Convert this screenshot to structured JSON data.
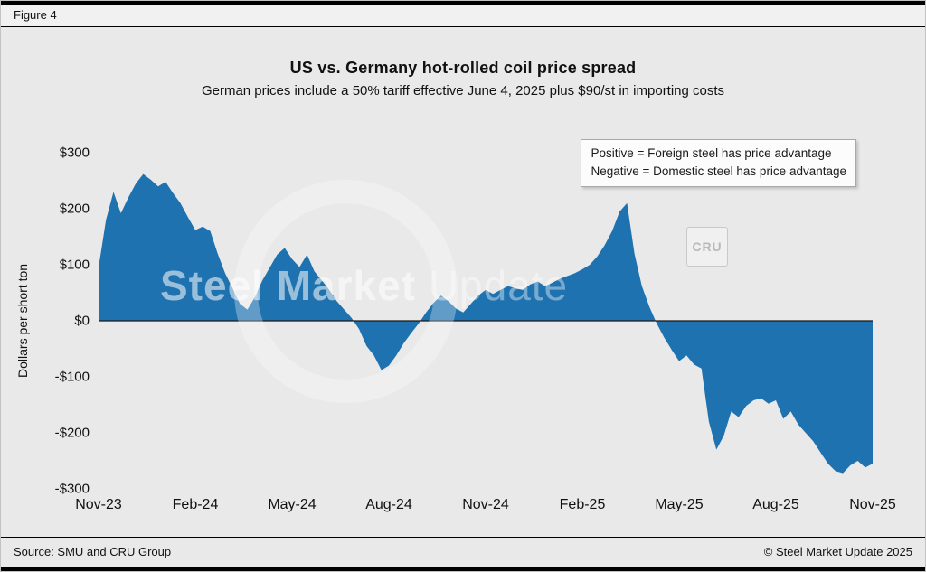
{
  "figure_label": "Figure 4",
  "chart_data": {
    "type": "area",
    "title": "US vs. Germany hot-rolled coil price spread",
    "subtitle": "German prices include a 50% tariff effective June 4, 2025 plus $90/st in importing costs",
    "ylabel": "Dollars per short ton",
    "ylim": [
      -300,
      300
    ],
    "yticks": [
      "$300",
      "$200",
      "$100",
      "$0",
      "-$100",
      "-$200",
      "-$300"
    ],
    "xticks": [
      "Nov-23",
      "Feb-24",
      "May-24",
      "Aug-24",
      "Nov-24",
      "Feb-25",
      "May-25",
      "Aug-25",
      "Nov-25"
    ],
    "x_range": [
      "Nov-2023",
      "Nov-2025"
    ],
    "frequency": "weekly (values estimated from plot)",
    "grid": false,
    "annotation": {
      "line1": "Positive = Foreign steel has price advantage",
      "line2": "Negative = Domestic steel has price advantage"
    },
    "series": [
      {
        "name": "US minus Germany hot-rolled coil price spread ($/short ton)",
        "values": [
          95,
          180,
          230,
          192,
          220,
          245,
          262,
          252,
          240,
          248,
          228,
          210,
          185,
          162,
          168,
          160,
          120,
          85,
          58,
          30,
          20,
          42,
          72,
          95,
          118,
          130,
          110,
          96,
          118,
          88,
          72,
          55,
          35,
          20,
          5,
          -15,
          -45,
          -62,
          -88,
          -80,
          -62,
          -40,
          -22,
          -5,
          15,
          32,
          45,
          35,
          22,
          15,
          30,
          45,
          55,
          48,
          55,
          62,
          58,
          55,
          65,
          70,
          62,
          68,
          75,
          80,
          85,
          92,
          100,
          115,
          135,
          160,
          195,
          210,
          120,
          62,
          25,
          -5,
          -30,
          -52,
          -72,
          -62,
          -78,
          -85,
          -180,
          -230,
          -205,
          -162,
          -172,
          -152,
          -142,
          -138,
          -148,
          -142,
          -175,
          -162,
          -185,
          -200,
          -215,
          -235,
          -255,
          -268,
          -272,
          -258,
          -250,
          -262,
          -255
        ]
      }
    ],
    "colors": {
      "area": "#1e72b0",
      "background": "#e9e9e9",
      "zero_line": "#1a1a1a"
    }
  },
  "watermark": {
    "word1": "Steel",
    "word2": "Market",
    "word3": "Update",
    "cru": "CRU"
  },
  "footer": {
    "source": "Source: SMU and CRU Group",
    "copyright": "© Steel Market Update 2025"
  }
}
